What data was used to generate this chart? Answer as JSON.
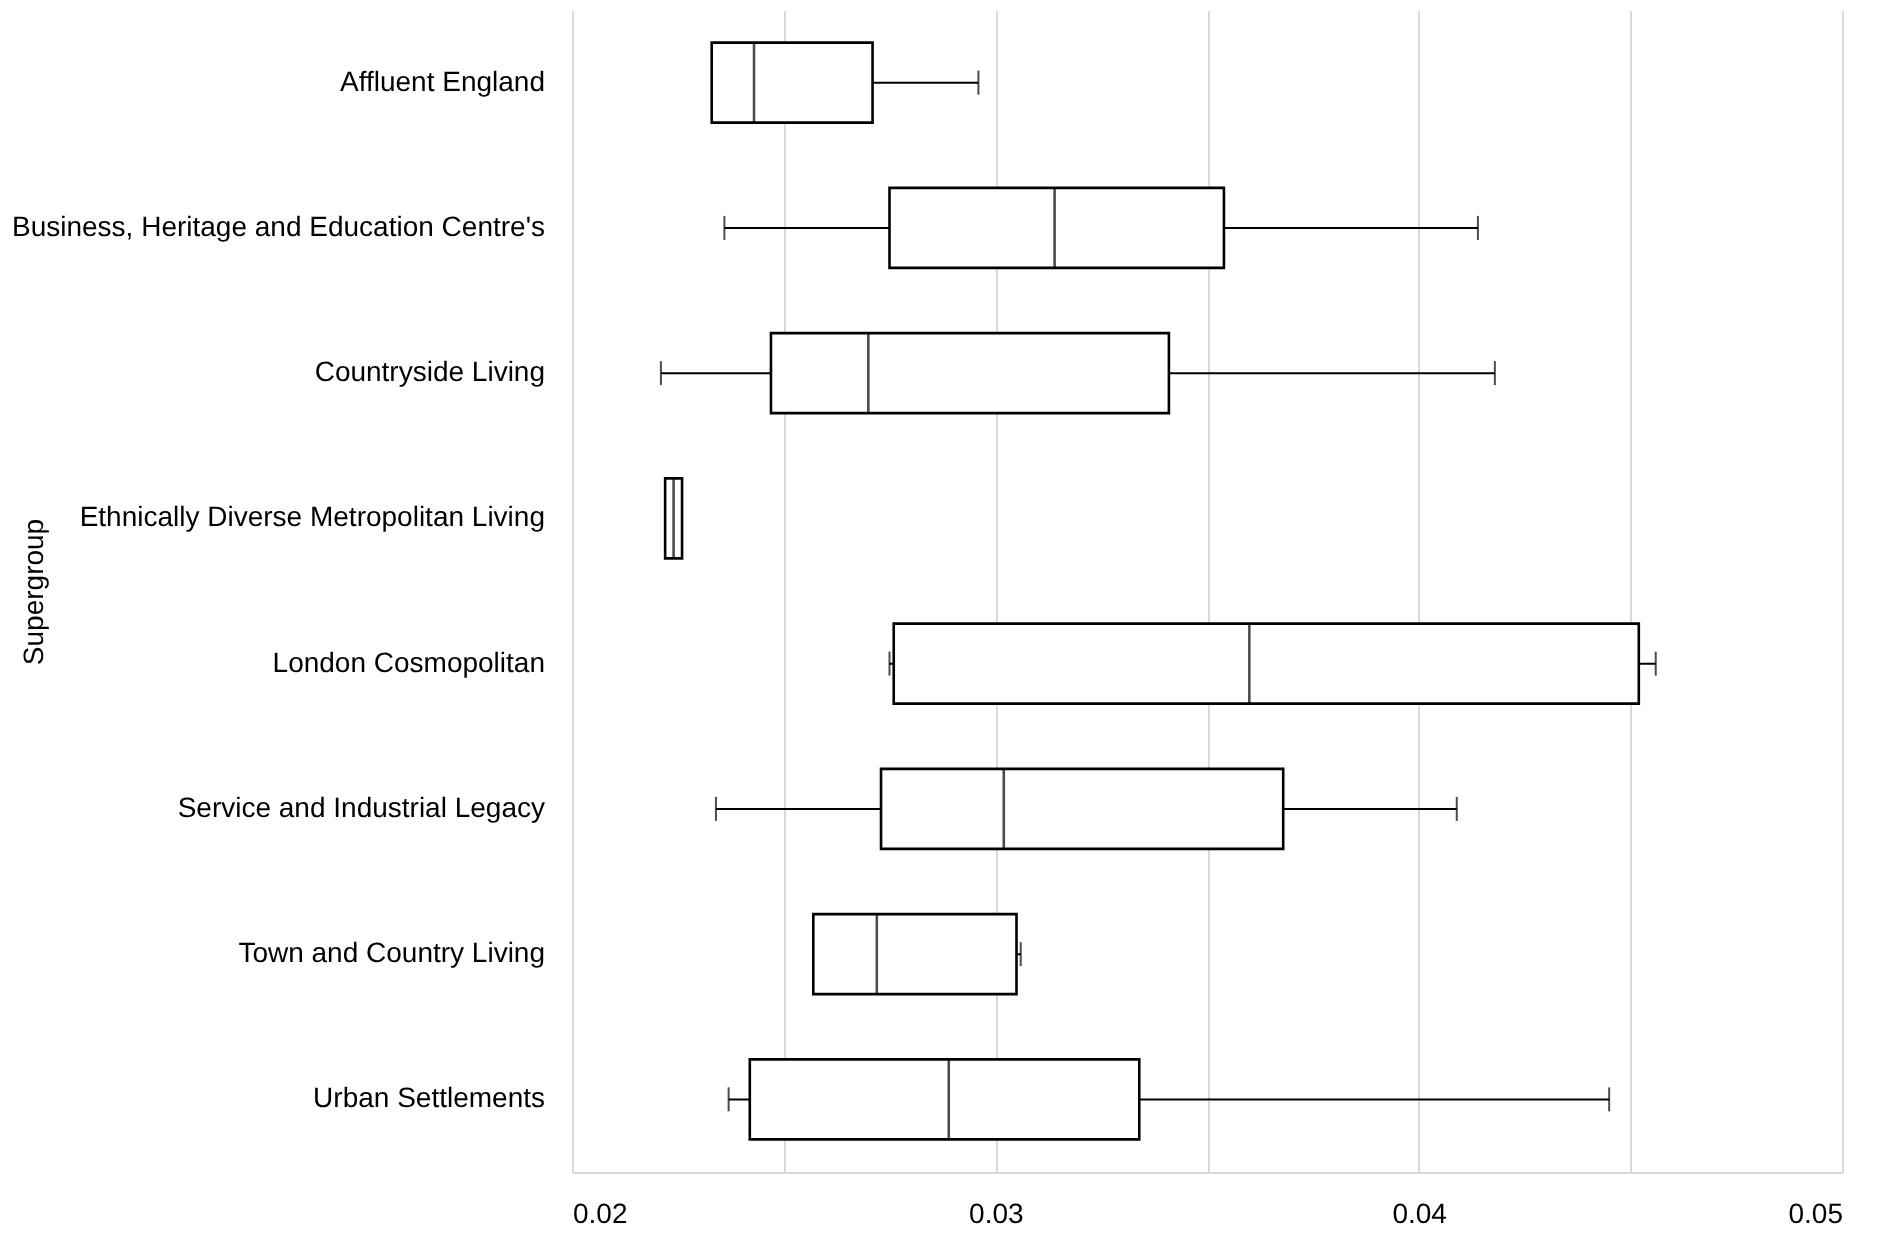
{
  "chart_data": {
    "type": "box",
    "orientation": "horizontal",
    "ylabel": "Supergroup",
    "categories": [
      "Affluent England",
      "Business, Heritage and Education Centre's",
      "Countryside Living",
      "Ethnically Diverse Metropolitan Living",
      "London Cosmopolitan",
      "Service and Industrial Legacy",
      "Town and Country Living",
      "Urban Settlements"
    ],
    "boxes": [
      {
        "low": 0.0233,
        "q1": 0.0233,
        "median": 0.0243,
        "q3": 0.0271,
        "high": 0.0296
      },
      {
        "low": 0.0236,
        "q1": 0.0275,
        "median": 0.0314,
        "q3": 0.0354,
        "high": 0.0414
      },
      {
        "low": 0.0221,
        "q1": 0.0247,
        "median": 0.027,
        "q3": 0.0341,
        "high": 0.0418
      },
      {
        "low": 0.0222,
        "q1": 0.0222,
        "median": 0.0224,
        "q3": 0.0226,
        "high": 0.0226
      },
      {
        "low": 0.0275,
        "q1": 0.0276,
        "median": 0.036,
        "q3": 0.0452,
        "high": 0.0456
      },
      {
        "low": 0.0234,
        "q1": 0.0273,
        "median": 0.0302,
        "q3": 0.0368,
        "high": 0.0409
      },
      {
        "low": 0.0257,
        "q1": 0.0257,
        "median": 0.0272,
        "q3": 0.0305,
        "high": 0.0306
      },
      {
        "low": 0.0237,
        "q1": 0.0242,
        "median": 0.0289,
        "q3": 0.0334,
        "high": 0.0445
      }
    ],
    "color": "#000000",
    "xlim": [
      0.02,
      0.05
    ],
    "xticks": [
      0.02,
      {
        "value": 0.025,
        "label": null
      },
      0.03,
      {
        "value": 0.035,
        "label": null
      },
      0.04,
      {
        "value": 0.045,
        "label": null
      },
      0.05
    ],
    "grid": "x"
  }
}
